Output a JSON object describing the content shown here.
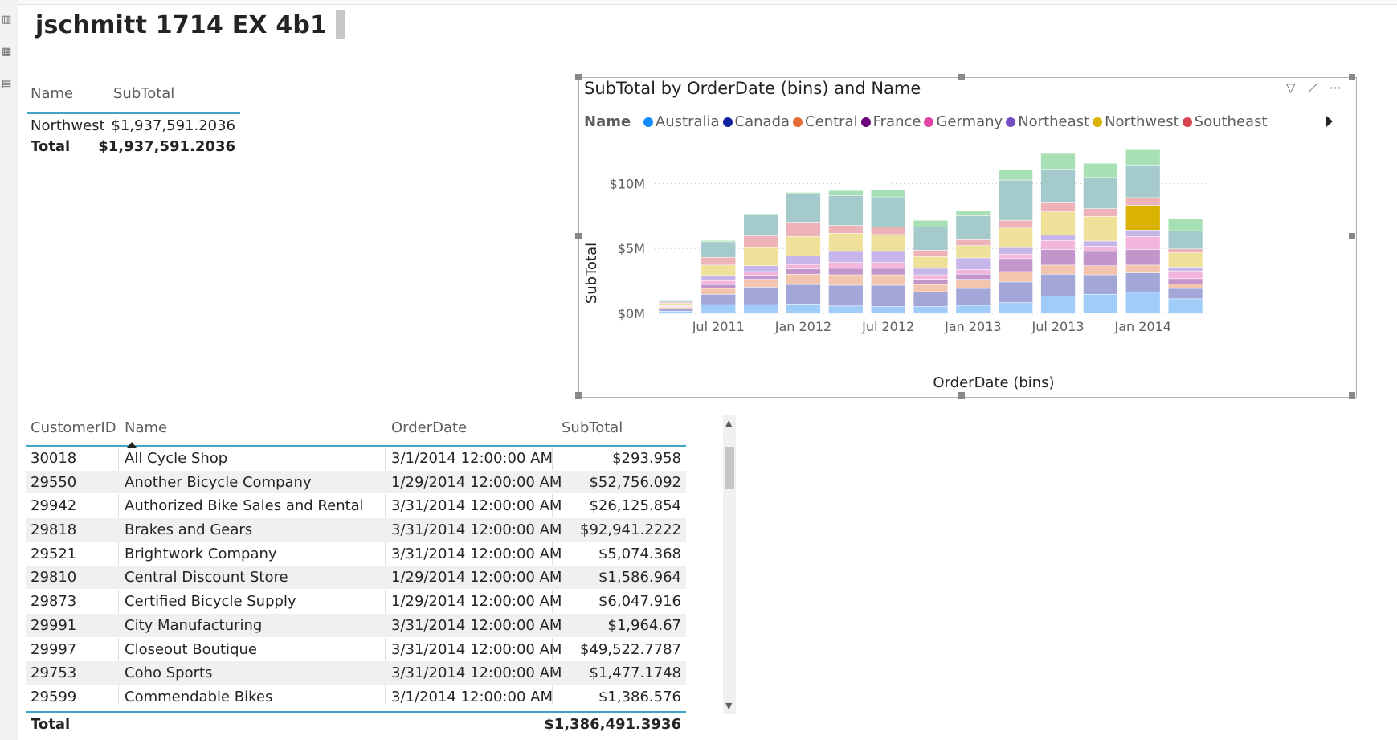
{
  "page": {
    "title": "jschmitt 1714 EX 4b1"
  },
  "summary_table": {
    "headers": [
      "Name",
      "SubTotal"
    ],
    "rows": [
      [
        "Northwest",
        "$1,937,591.2036"
      ]
    ],
    "total_label": "Total",
    "total_value": "$1,937,591.2036"
  },
  "chart": {
    "title": "SubTotal by OrderDate (bins) and Name",
    "legend_label": "Name",
    "legend": [
      {
        "name": "Australia",
        "color": "#118DFF"
      },
      {
        "name": "Canada",
        "color": "#12239E"
      },
      {
        "name": "Central",
        "color": "#E66C37"
      },
      {
        "name": "France",
        "color": "#6B007B"
      },
      {
        "name": "Germany",
        "color": "#E044A7"
      },
      {
        "name": "Northeast",
        "color": "#744EC2"
      },
      {
        "name": "Northwest",
        "color": "#D9B300"
      },
      {
        "name": "Southeast",
        "color": "#D64550"
      }
    ]
  },
  "chart_data": {
    "type": "bar",
    "stacked": true,
    "title": "SubTotal by OrderDate (bins) and Name",
    "xlabel": "OrderDate (bins)",
    "ylabel": "SubTotal",
    "y_ticks": [
      "$0M",
      "$5M",
      "$10M"
    ],
    "x_tick_labels": [
      "Jul 2011",
      "Jan 2012",
      "Jul 2012",
      "Jan 2013",
      "Jul 2013",
      "Jan 2014"
    ],
    "ylim": [
      0,
      13
    ],
    "grid": true,
    "legend_position": "top",
    "highlighted_series": "Northwest",
    "series_colors": [
      "#A0CCF9",
      "#A3A7D8",
      "#F4C5AE",
      "#C295CB",
      "#F2B6DC",
      "#C6B5E8",
      "#EFE19A",
      "#EEB3B8",
      "#A4CACC",
      "#A8E0B6"
    ],
    "series_highlight_colors": {
      "Northwest": "#D9B300"
    },
    "bins": [
      {
        "values": [
          0.15,
          0.2,
          0.1,
          0.05,
          0.05,
          0.05,
          0.15,
          0.1,
          0.1,
          0.05
        ]
      },
      {
        "values": [
          0.65,
          0.8,
          0.45,
          0.3,
          0.3,
          0.4,
          0.8,
          0.6,
          1.2,
          0.1
        ]
      },
      {
        "values": [
          0.65,
          1.35,
          0.6,
          0.3,
          0.3,
          0.45,
          1.4,
          0.9,
          1.6,
          0.1
        ]
      },
      {
        "values": [
          0.7,
          1.5,
          0.8,
          0.4,
          0.35,
          0.65,
          1.5,
          1.1,
          2.2,
          0.1
        ]
      },
      {
        "values": [
          0.55,
          1.6,
          0.8,
          0.5,
          0.45,
          0.85,
          1.4,
          0.6,
          2.3,
          0.4
        ]
      },
      {
        "values": [
          0.5,
          1.65,
          0.8,
          0.5,
          0.45,
          0.85,
          1.3,
          0.6,
          2.3,
          0.55
        ]
      },
      {
        "values": [
          0.5,
          1.15,
          0.55,
          0.4,
          0.35,
          0.5,
          0.9,
          0.5,
          1.8,
          0.5
        ]
      },
      {
        "values": [
          0.6,
          1.3,
          0.7,
          0.4,
          0.35,
          0.9,
          0.95,
          0.45,
          1.85,
          0.4
        ]
      },
      {
        "values": [
          0.8,
          1.6,
          0.8,
          1.0,
          0.35,
          0.5,
          1.5,
          0.6,
          3.1,
          0.8
        ]
      },
      {
        "values": [
          1.3,
          1.7,
          0.7,
          1.2,
          0.7,
          0.4,
          1.8,
          0.7,
          2.6,
          1.2
        ]
      },
      {
        "values": [
          1.45,
          1.5,
          0.7,
          1.1,
          0.4,
          0.4,
          1.9,
          0.6,
          2.4,
          1.1
        ]
      },
      {
        "values": [
          1.6,
          1.5,
          0.6,
          1.2,
          1.0,
          0.5,
          1.9,
          0.6,
          2.5,
          1.2
        ]
      },
      {
        "values": [
          1.1,
          0.8,
          0.35,
          0.4,
          0.6,
          0.3,
          1.1,
          0.3,
          1.4,
          0.9
        ]
      }
    ]
  },
  "detail_table": {
    "headers": [
      "CustomerID",
      "Name",
      "OrderDate",
      "SubTotal"
    ],
    "rows": [
      [
        "30018",
        "All Cycle Shop",
        "3/1/2014 12:00:00 AM",
        "$293.958"
      ],
      [
        "29550",
        "Another Bicycle Company",
        "1/29/2014 12:00:00 AM",
        "$52,756.092"
      ],
      [
        "29942",
        "Authorized Bike Sales and Rental",
        "3/31/2014 12:00:00 AM",
        "$26,125.854"
      ],
      [
        "29818",
        "Brakes and Gears",
        "3/31/2014 12:00:00 AM",
        "$92,941.2222"
      ],
      [
        "29521",
        "Brightwork Company",
        "3/31/2014 12:00:00 AM",
        "$5,074.368"
      ],
      [
        "29810",
        "Central Discount Store",
        "1/29/2014 12:00:00 AM",
        "$1,586.964"
      ],
      [
        "29873",
        "Certified Bicycle Supply",
        "1/29/2014 12:00:00 AM",
        "$6,047.916"
      ],
      [
        "29991",
        "City Manufacturing",
        "3/31/2014 12:00:00 AM",
        "$1,964.67"
      ],
      [
        "29997",
        "Closeout Boutique",
        "3/31/2014 12:00:00 AM",
        "$49,522.7787"
      ],
      [
        "29753",
        "Coho Sports",
        "3/31/2014 12:00:00 AM",
        "$1,477.1748"
      ],
      [
        "29599",
        "Commendable Bikes",
        "3/1/2014 12:00:00 AM",
        "$1,386.576"
      ]
    ],
    "total_label": "Total",
    "total_value": "$1,386,491.3936"
  }
}
